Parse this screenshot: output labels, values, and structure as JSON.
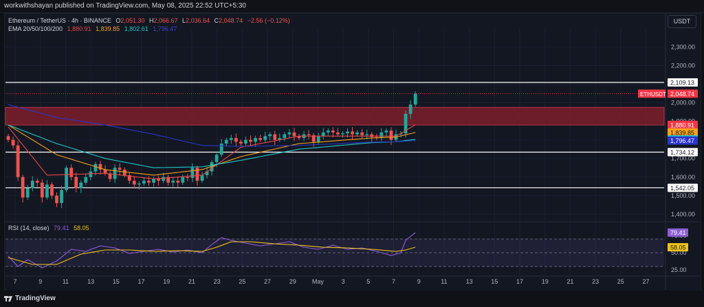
{
  "topbar": {
    "publisher": "workwithshayan published on TradingView.com, May 08, 2025 22:52 UTC+5:30"
  },
  "legend": {
    "symbol": "Ethereum / TetherUS · 4h · BINANCE",
    "open_label": "O",
    "open": "2,051.30",
    "high_label": "H",
    "high": "2,066.67",
    "low_label": "L",
    "low": "2,036.64",
    "close_label": "C",
    "close": "2,048.74",
    "change": "−2.56 (−0.12%)",
    "ema_label": "EMA 20/50/100/200",
    "ema20": "1,880.91",
    "ema50": "1,839.85",
    "ema100": "1,802.61",
    "ema200": "1,796.47"
  },
  "rsi_legend": {
    "label": "RSI (14, close)",
    "rsi": "79.41",
    "ma": "58.05"
  },
  "currency_button": "USDT",
  "footer": {
    "brand": "TradingView"
  },
  "colors": {
    "up": "#26a69a",
    "down": "#ef5350",
    "ema20": "#e84848",
    "ema50": "#f7a21b",
    "ema100": "#1ec8c8",
    "ema200": "#2a35c9",
    "rsi": "#8e5fd6",
    "rsi_ma": "#f0c419",
    "zone": "#7e1f2a",
    "last_price": "#f23645"
  },
  "chart_data": [
    {
      "type": "candlestick",
      "title": "Ethereum / TetherUS · 4h · BINANCE",
      "ylim": [
        1370,
        2390
      ],
      "y_ticks": [
        2300,
        2200,
        2100,
        2000,
        1900,
        1800,
        1700,
        1600,
        1500,
        1400
      ],
      "y_tick_labels": [
        "2,300.00",
        "2,200.00",
        "2,100.00",
        "2,000.00",
        "1,900.00",
        "1,800.00",
        "1,700.00",
        "1,600.00",
        "1,500.00",
        "1,400.00"
      ],
      "x_ticks": [
        "7",
        "9",
        "11",
        "13",
        "15",
        "17",
        "19",
        "21",
        "23",
        "25",
        "27",
        "29",
        "May",
        "3",
        "5",
        "7",
        "9",
        "11",
        "13",
        "15",
        "17",
        "19",
        "21",
        "23",
        "25",
        "27"
      ],
      "horizontal_lines": [
        2109.13,
        1734.12,
        1542.05
      ],
      "zone": [
        1880,
        1975
      ],
      "price_labels": [
        {
          "text": "2,109.13",
          "value": 2109.13,
          "bg": "#ffffff",
          "fg": "#131722"
        },
        {
          "text": "ETHUSDT",
          "value": 2048.74,
          "bg": "#f23645",
          "fg": "#ffffff",
          "side": "left"
        },
        {
          "text": "2,048.74",
          "value": 2048.74,
          "bg": "#f23645",
          "fg": "#ffffff"
        },
        {
          "text": "1,880.91",
          "value": 1880.91,
          "bg": "#f23645",
          "fg": "#ffffff"
        },
        {
          "text": "1,839.85",
          "value": 1839.85,
          "bg": "#f7a21b",
          "fg": "#131722"
        },
        {
          "text": "1,802.61",
          "value": 1802.61,
          "bg": "#1ec8c8",
          "fg": "#131722"
        },
        {
          "text": "1,796.47",
          "value": 1796.47,
          "bg": "#2a35c9",
          "fg": "#ffffff"
        },
        {
          "text": "1,734.12",
          "value": 1734.12,
          "bg": "#ffffff",
          "fg": "#131722"
        },
        {
          "text": "1,542.05",
          "value": 1542.05,
          "bg": "#ffffff",
          "fg": "#131722"
        }
      ],
      "close_anchors": [
        [
          0,
          1800
        ],
        [
          1,
          1770
        ],
        [
          2,
          1600
        ],
        [
          3,
          1490
        ],
        [
          4,
          1540
        ],
        [
          5,
          1580
        ],
        [
          6,
          1570
        ],
        [
          7,
          1490
        ],
        [
          8,
          1560
        ],
        [
          9,
          1500
        ],
        [
          10,
          1460
        ],
        [
          11,
          1530
        ],
        [
          12,
          1650
        ],
        [
          13,
          1600
        ],
        [
          14,
          1540
        ],
        [
          15,
          1570
        ],
        [
          16,
          1600
        ],
        [
          17,
          1630
        ],
        [
          18,
          1670
        ],
        [
          19,
          1640
        ],
        [
          20,
          1620
        ],
        [
          21,
          1590
        ],
        [
          22,
          1650
        ],
        [
          23,
          1640
        ],
        [
          24,
          1610
        ],
        [
          25,
          1580
        ],
        [
          26,
          1560
        ],
        [
          27,
          1565
        ],
        [
          28,
          1580
        ],
        [
          29,
          1570
        ],
        [
          30,
          1590
        ],
        [
          31,
          1580
        ],
        [
          32,
          1600
        ],
        [
          33,
          1570
        ],
        [
          34,
          1580
        ],
        [
          35,
          1570
        ],
        [
          36,
          1600
        ],
        [
          37,
          1595
        ],
        [
          38,
          1650
        ],
        [
          39,
          1580
        ],
        [
          40,
          1610
        ],
        [
          41,
          1630
        ],
        [
          42,
          1680
        ],
        [
          43,
          1720
        ],
        [
          44,
          1780
        ],
        [
          45,
          1800
        ],
        [
          46,
          1810
        ],
        [
          47,
          1790
        ],
        [
          48,
          1780
        ],
        [
          49,
          1800
        ],
        [
          50,
          1790
        ],
        [
          51,
          1810
        ],
        [
          52,
          1800
        ],
        [
          53,
          1820
        ],
        [
          54,
          1830
        ],
        [
          55,
          1800
        ],
        [
          56,
          1810
        ],
        [
          57,
          1830
        ],
        [
          58,
          1840
        ],
        [
          59,
          1820
        ],
        [
          60,
          1810
        ],
        [
          61,
          1830
        ],
        [
          62,
          1825
        ],
        [
          63,
          1790
        ],
        [
          64,
          1820
        ],
        [
          65,
          1840
        ],
        [
          66,
          1850
        ],
        [
          67,
          1840
        ],
        [
          68,
          1830
        ],
        [
          69,
          1835
        ],
        [
          70,
          1845
        ],
        [
          71,
          1830
        ],
        [
          72,
          1840
        ],
        [
          73,
          1825
        ],
        [
          74,
          1830
        ],
        [
          75,
          1815
        ],
        [
          76,
          1810
        ],
        [
          77,
          1840
        ],
        [
          78,
          1850
        ],
        [
          79,
          1800
        ],
        [
          80,
          1830
        ],
        [
          81,
          1835
        ],
        [
          82,
          1940
        ],
        [
          83,
          1990
        ],
        [
          84,
          2048.74
        ]
      ],
      "ema_values": {
        "EMA 20": [
          [
            0,
            1870
          ],
          [
            8,
            1610
          ],
          [
            20,
            1620
          ],
          [
            30,
            1590
          ],
          [
            40,
            1610
          ],
          [
            48,
            1760
          ],
          [
            60,
            1820
          ],
          [
            75,
            1820
          ],
          [
            80,
            1820
          ],
          [
            84,
            1880.91
          ]
        ],
        "EMA 50": [
          [
            0,
            1880
          ],
          [
            10,
            1720
          ],
          [
            20,
            1640
          ],
          [
            30,
            1610
          ],
          [
            40,
            1640
          ],
          [
            48,
            1710
          ],
          [
            60,
            1780
          ],
          [
            75,
            1810
          ],
          [
            80,
            1815
          ],
          [
            84,
            1839.85
          ]
        ],
        "EMA 100": [
          [
            0,
            1880
          ],
          [
            10,
            1780
          ],
          [
            20,
            1700
          ],
          [
            30,
            1650
          ],
          [
            40,
            1655
          ],
          [
            48,
            1690
          ],
          [
            60,
            1750
          ],
          [
            75,
            1785
          ],
          [
            80,
            1790
          ],
          [
            84,
            1802.61
          ]
        ],
        "EMA 200": [
          [
            0,
            1990
          ],
          [
            10,
            1920
          ],
          [
            20,
            1880
          ],
          [
            30,
            1830
          ],
          [
            40,
            1770
          ],
          [
            48,
            1765
          ],
          [
            60,
            1770
          ],
          [
            75,
            1788
          ],
          [
            80,
            1790
          ],
          [
            84,
            1796.47
          ]
        ]
      }
    },
    {
      "type": "line",
      "title": "RSI (14, close)",
      "ylim": [
        20,
        92
      ],
      "y_ticks": [
        75,
        50,
        25
      ],
      "y_tick_labels": [
        "75.00",
        "50.00",
        "25.00"
      ],
      "band": [
        30,
        70
      ],
      "value_labels": [
        {
          "text": "79.41",
          "value": 79.41,
          "bg": "#8e5fd6",
          "fg": "#ffffff"
        },
        {
          "text": "58.05",
          "value": 58.05,
          "bg": "#f0c419",
          "fg": "#131722"
        }
      ],
      "series": [
        {
          "name": "RSI",
          "values": [
            [
              0,
              45
            ],
            [
              2,
              30
            ],
            [
              4,
              40
            ],
            [
              7,
              28
            ],
            [
              10,
              38
            ],
            [
              13,
              55
            ],
            [
              16,
              52
            ],
            [
              19,
              60
            ],
            [
              22,
              57
            ],
            [
              25,
              49
            ],
            [
              28,
              52
            ],
            [
              31,
              55
            ],
            [
              34,
              51
            ],
            [
              37,
              54
            ],
            [
              40,
              50
            ],
            [
              42,
              62
            ],
            [
              44,
              72
            ],
            [
              46,
              68
            ],
            [
              49,
              64
            ],
            [
              52,
              60
            ],
            [
              55,
              63
            ],
            [
              58,
              66
            ],
            [
              61,
              58
            ],
            [
              64,
              55
            ],
            [
              67,
              61
            ],
            [
              70,
              55
            ],
            [
              73,
              57
            ],
            [
              76,
              52
            ],
            [
              79,
              46
            ],
            [
              81,
              50
            ],
            [
              82,
              68
            ],
            [
              84,
              79.41
            ]
          ]
        },
        {
          "name": "RSI-based MA",
          "values": [
            [
              0,
              43
            ],
            [
              5,
              33
            ],
            [
              10,
              33
            ],
            [
              15,
              48
            ],
            [
              20,
              54
            ],
            [
              25,
              54
            ],
            [
              30,
              52
            ],
            [
              35,
              53
            ],
            [
              40,
              52
            ],
            [
              43,
              58
            ],
            [
              46,
              66
            ],
            [
              50,
              66
            ],
            [
              55,
              63
            ],
            [
              60,
              61
            ],
            [
              65,
              58
            ],
            [
              70,
              57
            ],
            [
              75,
              55
            ],
            [
              80,
              52
            ],
            [
              82,
              54
            ],
            [
              84,
              58.05
            ]
          ]
        }
      ]
    }
  ]
}
